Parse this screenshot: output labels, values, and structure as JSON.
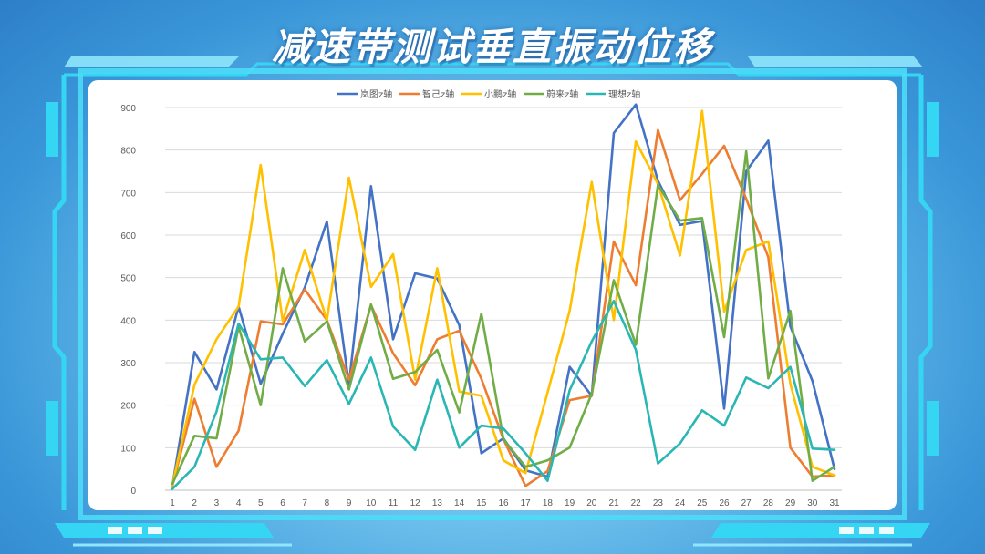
{
  "page": {
    "title": "减速带测试垂直振动位移"
  },
  "colors": {
    "frame": "#35d6f4",
    "frame_dark": "#1aa8e0",
    "grid": "#d9d9d9",
    "axis": "#bfbfbf"
  },
  "chart_data": {
    "type": "line",
    "title": "",
    "xlabel": "",
    "ylabel": "",
    "ylim": [
      0,
      900
    ],
    "yticks": [
      0,
      100,
      200,
      300,
      400,
      500,
      600,
      700,
      800,
      900
    ],
    "grid": true,
    "legend": "top-center",
    "categories": [
      "1",
      "2",
      "3",
      "4",
      "5",
      "6",
      "7",
      "8",
      "9",
      "10",
      "11",
      "12",
      "13",
      "14",
      "15",
      "16",
      "17",
      "18",
      "19",
      "20",
      "21",
      "22",
      "23",
      "24",
      "25",
      "26",
      "27",
      "28",
      "29",
      "30",
      "31"
    ],
    "series": [
      {
        "name": "岚图z轴",
        "color": "#4472c4",
        "values": [
          10,
          325,
          237,
          432,
          250,
          368,
          477,
          632,
          248,
          715,
          355,
          510,
          498,
          388,
          87,
          122,
          47,
          32,
          290,
          222,
          840,
          907,
          728,
          624,
          633,
          192,
          750,
          822,
          385,
          257,
          50
        ]
      },
      {
        "name": "智己z轴",
        "color": "#ed7d31",
        "values": [
          10,
          215,
          55,
          140,
          397,
          390,
          472,
          400,
          260,
          435,
          322,
          247,
          355,
          375,
          262,
          120,
          10,
          45,
          212,
          222,
          585,
          482,
          847,
          682,
          744,
          810,
          685,
          548,
          100,
          32,
          35
        ]
      },
      {
        "name": "小鹏z轴",
        "color": "#ffc000",
        "values": [
          12,
          248,
          355,
          432,
          765,
          398,
          565,
          400,
          735,
          478,
          555,
          260,
          522,
          232,
          222,
          70,
          40,
          230,
          422,
          725,
          400,
          820,
          720,
          552,
          892,
          420,
          565,
          585,
          250,
          55,
          35
        ]
      },
      {
        "name": "蔚来z轴",
        "color": "#70ad47",
        "values": [
          15,
          128,
          122,
          385,
          200,
          522,
          350,
          397,
          237,
          437,
          262,
          278,
          330,
          183,
          415,
          120,
          55,
          70,
          100,
          227,
          494,
          342,
          718,
          634,
          640,
          360,
          797,
          263,
          422,
          22,
          55
        ]
      },
      {
        "name": "理想z轴",
        "color": "#2ab7b4",
        "values": [
          3,
          55,
          185,
          392,
          308,
          312,
          245,
          306,
          203,
          312,
          150,
          95,
          260,
          100,
          152,
          145,
          87,
          22,
          235,
          350,
          445,
          330,
          63,
          110,
          188,
          152,
          265,
          240,
          290,
          98,
          95
        ]
      }
    ]
  }
}
